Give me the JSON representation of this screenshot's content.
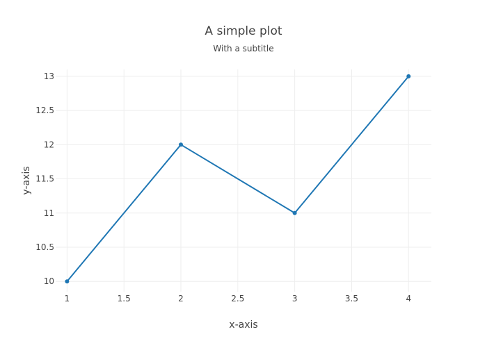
{
  "chart_data": {
    "type": "line",
    "title": "A simple plot",
    "subtitle": "With a subtitle",
    "xlabel": "x-axis",
    "ylabel": "y-axis",
    "xlim": [
      0.9,
      4.2
    ],
    "ylim": [
      9.85,
      13.1
    ],
    "x_ticks": [
      1,
      1.5,
      2,
      2.5,
      3,
      3.5,
      4
    ],
    "y_ticks": [
      10,
      10.5,
      11,
      11.5,
      12,
      12.5,
      13
    ],
    "x_tick_labels": [
      "1",
      "1.5",
      "2",
      "2.5",
      "3",
      "3.5",
      "4"
    ],
    "y_tick_labels": [
      "10",
      "10.5",
      "11",
      "11.5",
      "12",
      "12.5",
      "13"
    ],
    "grid": true,
    "legend": "none",
    "series": [
      {
        "color": "#1f77b4",
        "mode": "lines+markers",
        "x": [
          1,
          2,
          3,
          4
        ],
        "y": [
          10,
          12,
          11,
          13
        ]
      }
    ]
  }
}
